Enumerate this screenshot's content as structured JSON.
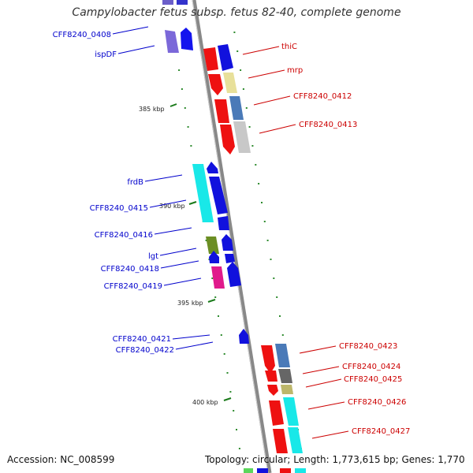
{
  "title": "Campylobacter fetus subsp. fetus 82-40, complete genome",
  "footer": {
    "accession": "Accession: NC_008599",
    "summary": "Topology: circular; Length: 1,773,615 bp; Genes: 1,770"
  },
  "colors": {
    "backbone": "#888888",
    "left_label": "#0000cc",
    "right_label": "#cc0000",
    "kbp_tick": "#1a7a1a"
  },
  "kbp_marks": [
    "385 kbp",
    "390 kbp",
    "395 kbp",
    "400 kbp"
  ],
  "left_labels": [
    "CFF8240_0408",
    "ispDF",
    "frdB",
    "CFF8240_0415",
    "CFF8240_0416",
    "lgt",
    "CFF8240_0418",
    "CFF8240_0419",
    "CFF8240_0421",
    "CFF8240_0422"
  ],
  "right_labels": [
    "thiC",
    "mrp",
    "CFF8240_0412",
    "CFF8240_0413",
    "CFF8240_0423",
    "CFF8240_0424",
    "CFF8240_0425",
    "CFF8240_0426",
    "CFF8240_0427"
  ]
}
